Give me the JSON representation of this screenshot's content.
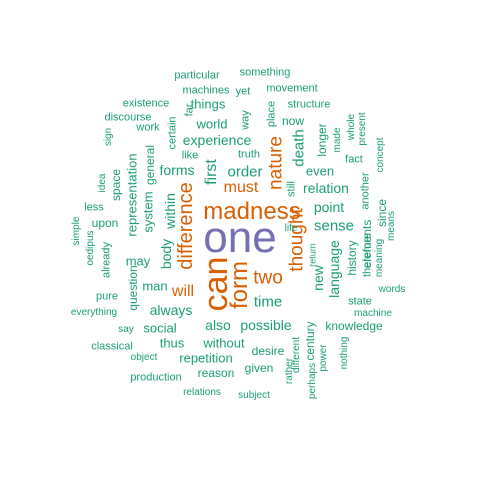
{
  "colors": {
    "teal": "#1b9e77",
    "orange": "#d95f02",
    "purple": "#7570b3"
  },
  "words": [
    {
      "text": "one",
      "color": "purple"
    },
    {
      "text": "madness",
      "color": "orange"
    },
    {
      "text": "can",
      "color": "orange"
    },
    {
      "text": "form",
      "color": "orange"
    },
    {
      "text": "difference",
      "color": "orange"
    },
    {
      "text": "thought",
      "color": "orange"
    },
    {
      "text": "nature",
      "color": "orange"
    },
    {
      "text": "two",
      "color": "orange"
    },
    {
      "text": "must",
      "color": "orange"
    },
    {
      "text": "will",
      "color": "orange"
    },
    {
      "text": "first",
      "color": "teal"
    },
    {
      "text": "order",
      "color": "teal"
    },
    {
      "text": "time",
      "color": "teal"
    },
    {
      "text": "death",
      "color": "teal"
    },
    {
      "text": "relation",
      "color": "teal"
    },
    {
      "text": "sense",
      "color": "teal"
    },
    {
      "text": "new",
      "color": "teal"
    },
    {
      "text": "language",
      "color": "teal"
    },
    {
      "text": "point",
      "color": "teal"
    },
    {
      "text": "possible",
      "color": "teal"
    },
    {
      "text": "also",
      "color": "teal"
    },
    {
      "text": "always",
      "color": "teal"
    },
    {
      "text": "body",
      "color": "teal"
    },
    {
      "text": "within",
      "color": "teal"
    },
    {
      "text": "experience",
      "color": "teal"
    },
    {
      "text": "forms",
      "color": "teal"
    },
    {
      "text": "world",
      "color": "teal"
    },
    {
      "text": "things",
      "color": "teal"
    },
    {
      "text": "even",
      "color": "teal"
    },
    {
      "text": "history",
      "color": "teal"
    },
    {
      "text": "elements",
      "color": "teal"
    },
    {
      "text": "since",
      "color": "teal"
    },
    {
      "text": "social",
      "color": "teal"
    },
    {
      "text": "man",
      "color": "teal"
    },
    {
      "text": "may",
      "color": "teal"
    },
    {
      "text": "repetition",
      "color": "teal"
    },
    {
      "text": "without",
      "color": "teal"
    },
    {
      "text": "thus",
      "color": "teal"
    },
    {
      "text": "desire",
      "color": "teal"
    },
    {
      "text": "knowledge",
      "color": "teal"
    },
    {
      "text": "century",
      "color": "teal"
    },
    {
      "text": "reason",
      "color": "teal"
    },
    {
      "text": "given",
      "color": "teal"
    },
    {
      "text": "representation",
      "color": "teal"
    },
    {
      "text": "system",
      "color": "teal"
    },
    {
      "text": "general",
      "color": "teal"
    },
    {
      "text": "question",
      "color": "teal"
    },
    {
      "text": "upon",
      "color": "teal"
    },
    {
      "text": "space",
      "color": "teal"
    },
    {
      "text": "already",
      "color": "teal"
    },
    {
      "text": "longer",
      "color": "teal"
    },
    {
      "text": "another",
      "color": "teal"
    },
    {
      "text": "therefore",
      "color": "teal"
    },
    {
      "text": "now",
      "color": "teal"
    },
    {
      "text": "place",
      "color": "teal"
    },
    {
      "text": "structure",
      "color": "teal"
    },
    {
      "text": "movement",
      "color": "teal"
    },
    {
      "text": "something",
      "color": "teal"
    },
    {
      "text": "particular",
      "color": "teal"
    },
    {
      "text": "machines",
      "color": "teal"
    },
    {
      "text": "yet",
      "color": "teal"
    },
    {
      "text": "existence",
      "color": "teal"
    },
    {
      "text": "discourse",
      "color": "teal"
    },
    {
      "text": "work",
      "color": "teal"
    },
    {
      "text": "sign",
      "color": "teal"
    },
    {
      "text": "certain",
      "color": "teal"
    },
    {
      "text": "far",
      "color": "teal"
    },
    {
      "text": "way",
      "color": "teal"
    },
    {
      "text": "truth",
      "color": "teal"
    },
    {
      "text": "like",
      "color": "teal"
    },
    {
      "text": "made",
      "color": "teal"
    },
    {
      "text": "whole",
      "color": "teal"
    },
    {
      "text": "present",
      "color": "teal"
    },
    {
      "text": "concept",
      "color": "teal"
    },
    {
      "text": "fact",
      "color": "teal"
    },
    {
      "text": "still",
      "color": "teal"
    },
    {
      "text": "idea",
      "color": "teal"
    },
    {
      "text": "less",
      "color": "teal"
    },
    {
      "text": "simple",
      "color": "teal"
    },
    {
      "text": "oedipus",
      "color": "teal"
    },
    {
      "text": "pure",
      "color": "teal"
    },
    {
      "text": "everything",
      "color": "teal"
    },
    {
      "text": "say",
      "color": "teal"
    },
    {
      "text": "classical",
      "color": "teal"
    },
    {
      "text": "object",
      "color": "teal"
    },
    {
      "text": "production",
      "color": "teal"
    },
    {
      "text": "relations",
      "color": "teal"
    },
    {
      "text": "subject",
      "color": "teal"
    },
    {
      "text": "rather",
      "color": "teal"
    },
    {
      "text": "different",
      "color": "teal"
    },
    {
      "text": "perhaps",
      "color": "teal"
    },
    {
      "text": "power",
      "color": "teal"
    },
    {
      "text": "nothing",
      "color": "teal"
    },
    {
      "text": "machine",
      "color": "teal"
    },
    {
      "text": "state",
      "color": "teal"
    },
    {
      "text": "words",
      "color": "teal"
    },
    {
      "text": "meaning",
      "color": "teal"
    },
    {
      "text": "means",
      "color": "teal"
    },
    {
      "text": "life",
      "color": "teal"
    },
    {
      "text": "return",
      "color": "teal"
    }
  ]
}
